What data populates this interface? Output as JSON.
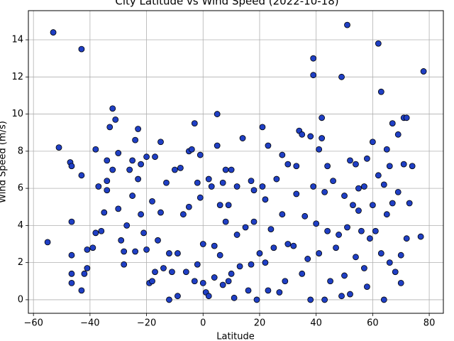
{
  "chart_data": {
    "type": "scatter",
    "title": "City Latitude vs Wind Speed (2022-10-18)",
    "x_label": "Latitude",
    "y_label": "Wind Speed (m/s)",
    "color": "#1f3fc4",
    "edgecolor": "#000000",
    "grid": true,
    "xlim": [
      -61.8,
      85
    ],
    "ylim": [
      -0.73,
      15.57
    ],
    "xticks": [
      {
        "value": -60,
        "label": "−60"
      },
      {
        "value": -40,
        "label": "−40"
      },
      {
        "value": -20,
        "label": "−20"
      },
      0,
      20,
      40,
      60,
      80
    ],
    "yticks": [
      0,
      2,
      4,
      6,
      8,
      10,
      12,
      14
    ],
    "x": [
      -55,
      -53,
      -51,
      -47,
      -46.5,
      -46.5,
      -46.5,
      -46.5,
      -46.5,
      -43,
      -43,
      -43,
      -42,
      -41,
      -41,
      -39,
      -38,
      -38,
      -37,
      -36,
      -35,
      -34,
      -34,
      -34,
      -33,
      -32,
      -32,
      -31,
      -30,
      -30,
      -29,
      -28,
      -28,
      -27,
      -26,
      -25,
      -25,
      -24,
      -24,
      -23,
      -23,
      -22,
      -22,
      -21,
      -20,
      -20,
      -19,
      -18,
      -18,
      -17,
      -17,
      -16,
      -15,
      -15,
      -14,
      -13,
      -12,
      -12,
      -11,
      -10,
      -9,
      -9,
      -8,
      -7,
      -6,
      -5,
      -5,
      -4,
      -3,
      -3,
      -2,
      -2,
      -1,
      -1,
      0,
      0,
      1,
      2,
      2,
      3,
      4,
      4,
      5,
      5,
      6,
      6,
      7,
      7,
      8,
      8,
      9,
      9,
      10,
      10,
      11,
      12,
      12,
      13,
      14,
      15,
      16,
      17,
      17,
      18,
      18,
      19,
      20,
      21,
      21,
      22,
      22,
      23,
      23,
      24,
      25,
      26,
      27,
      28,
      28,
      29,
      30,
      30,
      32,
      33,
      33,
      34,
      35,
      35,
      36,
      37,
      38,
      38,
      39,
      39,
      39,
      40,
      41,
      41,
      42,
      42,
      43,
      43,
      44,
      44,
      45,
      46,
      47,
      48,
      49,
      49,
      50,
      50,
      51,
      51,
      52,
      52,
      53,
      54,
      54,
      55,
      55,
      56,
      57,
      57,
      58,
      58,
      59,
      60,
      60,
      61,
      62,
      62,
      63,
      63,
      64,
      64,
      65,
      65,
      66,
      66,
      67,
      67,
      68,
      69,
      69,
      70,
      70,
      71,
      71,
      72,
      72,
      73,
      74,
      77,
      78
    ],
    "values": [
      3.1,
      14.4,
      8.2,
      7.4,
      7.2,
      4.2,
      2.4,
      1.4,
      0.9,
      13.5,
      6.7,
      0.5,
      1.4,
      2.7,
      1.7,
      2.8,
      8.1,
      3.6,
      6.1,
      3.7,
      4.7,
      7.5,
      6.4,
      5.9,
      9.3,
      10.3,
      7.0,
      9.7,
      7.9,
      4.9,
      3.2,
      2.6,
      1.9,
      4.0,
      7.0,
      7.5,
      5.6,
      8.6,
      2.6,
      9.2,
      6.5,
      7.3,
      4.6,
      3.6,
      7.7,
      2.7,
      0.9,
      5.3,
      1.0,
      7.7,
      1.5,
      3.2,
      8.5,
      4.7,
      1.7,
      6.3,
      2.5,
      0.0,
      1.5,
      7.0,
      2.5,
      0.2,
      7.1,
      4.6,
      1.5,
      8.0,
      5.0,
      8.1,
      9.5,
      1.0,
      6.3,
      1.9,
      7.8,
      5.5,
      3.0,
      0.9,
      0.4,
      6.5,
      0.2,
      6.1,
      2.9,
      1.2,
      8.3,
      10.0,
      5.1,
      2.4,
      0.8,
      6.3,
      7.0,
      4.2,
      5.1,
      1.0,
      7.0,
      1.4,
      0.1,
      3.5,
      6.1,
      1.8,
      8.7,
      3.9,
      0.5,
      6.4,
      1.9,
      5.9,
      4.2,
      0.0,
      2.5,
      9.3,
      6.1,
      5.4,
      2.0,
      8.3,
      0.5,
      3.8,
      2.8,
      6.5,
      0.4,
      7.8,
      4.6,
      1.0,
      7.3,
      3.0,
      2.9,
      7.2,
      5.7,
      9.1,
      8.9,
      1.4,
      4.5,
      2.2,
      8.8,
      0.0,
      13.0,
      12.1,
      6.1,
      4.1,
      8.1,
      2.5,
      9.8,
      8.7,
      5.8,
      0.0,
      7.2,
      3.7,
      1.0,
      6.4,
      2.8,
      3.5,
      12.0,
      0.2,
      5.6,
      1.3,
      14.8,
      3.9,
      7.5,
      0.3,
      5.1,
      7.3,
      2.3,
      6.0,
      4.8,
      3.7,
      6.1,
      1.7,
      7.6,
      0.7,
      3.3,
      8.5,
      5.1,
      3.7,
      13.8,
      6.7,
      11.2,
      2.5,
      6.2,
      0.0,
      8.1,
      4.6,
      7.2,
      2.0,
      9.5,
      5.2,
      1.5,
      8.9,
      5.8,
      2.4,
      0.9,
      9.8,
      7.3,
      9.8,
      3.3,
      5.2,
      7.2,
      3.4,
      12.3
    ]
  }
}
